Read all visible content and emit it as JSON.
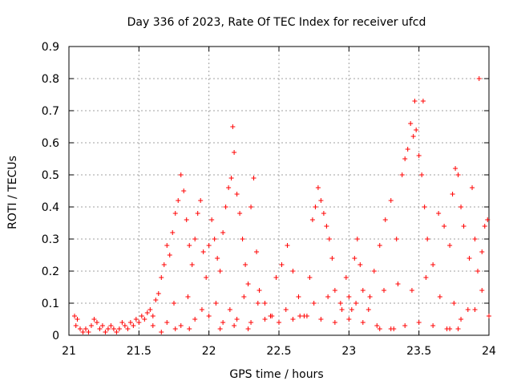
{
  "chart_data": {
    "type": "scatter",
    "title": "Day 336 of 2023, Rate Of TEC Index for receiver ufcd",
    "xlabel": "GPS time / hours",
    "ylabel": "ROTI / TECUs",
    "xlim": [
      21,
      24
    ],
    "ylim": [
      0,
      0.9
    ],
    "xticks": [
      "21",
      "21.5",
      "22",
      "22.5",
      "23",
      "23.5",
      "24"
    ],
    "yticks": [
      "0",
      "0.1",
      "0.2",
      "0.3",
      "0.4",
      "0.5",
      "0.6",
      "0.7",
      "0.8",
      "0.9"
    ],
    "grid": true,
    "marker": "+",
    "color": "#ff0000",
    "series": [
      {
        "name": "ROTI",
        "points": [
          [
            21.04,
            0.06
          ],
          [
            21.05,
            0.03
          ],
          [
            21.06,
            0.05
          ],
          [
            21.08,
            0.02
          ],
          [
            21.1,
            0.01
          ],
          [
            21.12,
            0.02
          ],
          [
            21.14,
            0.01
          ],
          [
            21.16,
            0.03
          ],
          [
            21.18,
            0.05
          ],
          [
            21.2,
            0.04
          ],
          [
            21.22,
            0.02
          ],
          [
            21.24,
            0.03
          ],
          [
            21.26,
            0.01
          ],
          [
            21.28,
            0.02
          ],
          [
            21.3,
            0.03
          ],
          [
            21.32,
            0.02
          ],
          [
            21.34,
            0.01
          ],
          [
            21.36,
            0.02
          ],
          [
            21.38,
            0.04
          ],
          [
            21.4,
            0.03
          ],
          [
            21.42,
            0.02
          ],
          [
            21.44,
            0.04
          ],
          [
            21.46,
            0.03
          ],
          [
            21.48,
            0.05
          ],
          [
            21.5,
            0.04
          ],
          [
            21.52,
            0.06
          ],
          [
            21.54,
            0.05
          ],
          [
            21.56,
            0.07
          ],
          [
            21.58,
            0.08
          ],
          [
            21.6,
            0.06
          ],
          [
            21.62,
            0.11
          ],
          [
            21.64,
            0.13
          ],
          [
            21.66,
            0.18
          ],
          [
            21.68,
            0.22
          ],
          [
            21.7,
            0.28
          ],
          [
            21.72,
            0.25
          ],
          [
            21.74,
            0.32
          ],
          [
            21.76,
            0.38
          ],
          [
            21.78,
            0.42
          ],
          [
            21.8,
            0.5
          ],
          [
            21.82,
            0.45
          ],
          [
            21.84,
            0.36
          ],
          [
            21.86,
            0.28
          ],
          [
            21.88,
            0.22
          ],
          [
            21.9,
            0.3
          ],
          [
            21.92,
            0.38
          ],
          [
            21.94,
            0.42
          ],
          [
            21.96,
            0.26
          ],
          [
            21.98,
            0.18
          ],
          [
            22.0,
            0.28
          ],
          [
            22.02,
            0.36
          ],
          [
            22.04,
            0.3
          ],
          [
            22.06,
            0.24
          ],
          [
            22.08,
            0.2
          ],
          [
            22.1,
            0.32
          ],
          [
            22.12,
            0.4
          ],
          [
            22.14,
            0.46
          ],
          [
            22.16,
            0.49
          ],
          [
            22.17,
            0.65
          ],
          [
            22.18,
            0.57
          ],
          [
            22.2,
            0.44
          ],
          [
            22.22,
            0.38
          ],
          [
            22.24,
            0.3
          ],
          [
            22.26,
            0.22
          ],
          [
            22.28,
            0.16
          ],
          [
            22.3,
            0.4
          ],
          [
            22.32,
            0.49
          ],
          [
            22.34,
            0.26
          ],
          [
            22.36,
            0.14
          ],
          [
            22.4,
            0.1
          ],
          [
            22.44,
            0.06
          ],
          [
            22.48,
            0.18
          ],
          [
            22.52,
            0.22
          ],
          [
            22.56,
            0.28
          ],
          [
            22.6,
            0.2
          ],
          [
            22.64,
            0.12
          ],
          [
            22.68,
            0.06
          ],
          [
            22.72,
            0.18
          ],
          [
            22.74,
            0.36
          ],
          [
            22.76,
            0.4
          ],
          [
            22.78,
            0.46
          ],
          [
            22.8,
            0.42
          ],
          [
            22.82,
            0.38
          ],
          [
            22.84,
            0.34
          ],
          [
            22.86,
            0.3
          ],
          [
            22.88,
            0.24
          ],
          [
            22.9,
            0.14
          ],
          [
            22.94,
            0.1
          ],
          [
            22.98,
            0.18
          ],
          [
            23.0,
            0.12
          ],
          [
            23.02,
            0.08
          ],
          [
            23.04,
            0.24
          ],
          [
            23.06,
            0.3
          ],
          [
            23.08,
            0.22
          ],
          [
            23.1,
            0.14
          ],
          [
            23.14,
            0.08
          ],
          [
            23.18,
            0.2
          ],
          [
            23.22,
            0.28
          ],
          [
            23.26,
            0.36
          ],
          [
            23.3,
            0.42
          ],
          [
            23.34,
            0.3
          ],
          [
            23.38,
            0.5
          ],
          [
            23.4,
            0.55
          ],
          [
            23.42,
            0.58
          ],
          [
            23.44,
            0.66
          ],
          [
            23.46,
            0.62
          ],
          [
            23.47,
            0.73
          ],
          [
            23.48,
            0.64
          ],
          [
            23.5,
            0.56
          ],
          [
            23.52,
            0.5
          ],
          [
            23.53,
            0.73
          ],
          [
            23.54,
            0.4
          ],
          [
            23.56,
            0.3
          ],
          [
            23.6,
            0.22
          ],
          [
            23.64,
            0.38
          ],
          [
            23.68,
            0.34
          ],
          [
            23.72,
            0.28
          ],
          [
            23.74,
            0.44
          ],
          [
            23.76,
            0.52
          ],
          [
            23.78,
            0.5
          ],
          [
            23.8,
            0.4
          ],
          [
            23.82,
            0.34
          ],
          [
            23.86,
            0.24
          ],
          [
            23.88,
            0.46
          ],
          [
            23.9,
            0.3
          ],
          [
            23.92,
            0.2
          ],
          [
            23.93,
            0.8
          ],
          [
            23.95,
            0.26
          ],
          [
            23.97,
            0.34
          ],
          [
            23.99,
            0.36
          ],
          [
            21.6,
            0.03
          ],
          [
            21.7,
            0.04
          ],
          [
            21.8,
            0.03
          ],
          [
            21.9,
            0.05
          ],
          [
            22.0,
            0.06
          ],
          [
            22.1,
            0.04
          ],
          [
            22.2,
            0.05
          ],
          [
            22.3,
            0.04
          ],
          [
            22.4,
            0.05
          ],
          [
            22.5,
            0.04
          ],
          [
            22.6,
            0.05
          ],
          [
            22.7,
            0.06
          ],
          [
            22.8,
            0.05
          ],
          [
            22.9,
            0.04
          ],
          [
            23.0,
            0.05
          ],
          [
            23.1,
            0.04
          ],
          [
            23.2,
            0.03
          ],
          [
            23.3,
            0.02
          ],
          [
            23.4,
            0.03
          ],
          [
            23.5,
            0.04
          ],
          [
            23.6,
            0.03
          ],
          [
            23.7,
            0.02
          ],
          [
            23.8,
            0.05
          ],
          [
            23.9,
            0.08
          ],
          [
            24.0,
            0.06
          ],
          [
            21.75,
            0.1
          ],
          [
            21.85,
            0.12
          ],
          [
            21.95,
            0.08
          ],
          [
            22.05,
            0.1
          ],
          [
            22.15,
            0.08
          ],
          [
            22.25,
            0.12
          ],
          [
            22.35,
            0.1
          ],
          [
            22.45,
            0.06
          ],
          [
            22.55,
            0.08
          ],
          [
            22.65,
            0.06
          ],
          [
            22.75,
            0.1
          ],
          [
            22.85,
            0.12
          ],
          [
            22.95,
            0.08
          ],
          [
            23.05,
            0.1
          ],
          [
            23.15,
            0.12
          ],
          [
            23.25,
            0.14
          ],
          [
            23.35,
            0.16
          ],
          [
            23.45,
            0.14
          ],
          [
            23.55,
            0.18
          ],
          [
            23.65,
            0.12
          ],
          [
            23.75,
            0.1
          ],
          [
            23.85,
            0.08
          ],
          [
            23.95,
            0.14
          ],
          [
            22.08,
            0.02
          ],
          [
            22.18,
            0.03
          ],
          [
            22.28,
            0.02
          ],
          [
            23.22,
            0.02
          ],
          [
            23.32,
            0.02
          ],
          [
            23.72,
            0.02
          ],
          [
            23.78,
            0.02
          ],
          [
            21.66,
            0.01
          ],
          [
            21.76,
            0.02
          ],
          [
            21.86,
            0.02
          ]
        ]
      }
    ]
  }
}
